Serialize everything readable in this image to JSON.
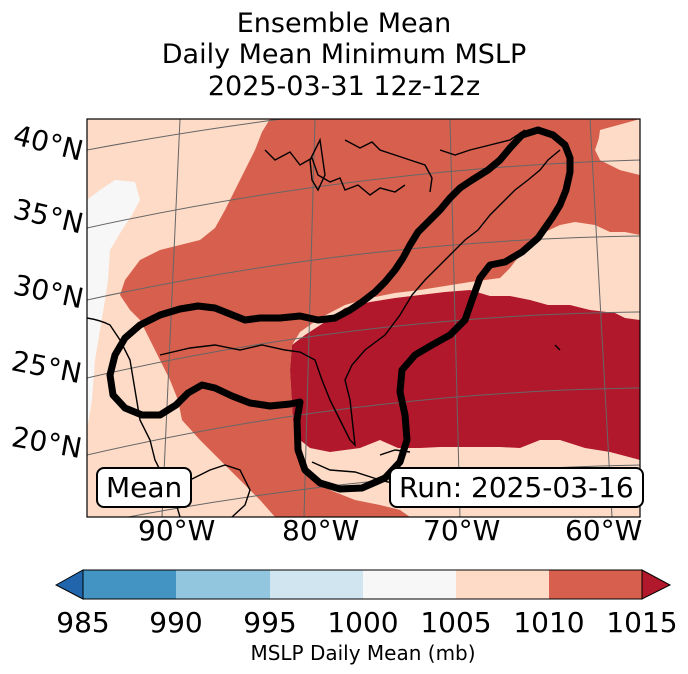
{
  "title_lines": [
    "Ensemble Mean",
    "Daily Mean Minimum MSLP",
    "2025-03-31 12z-12z"
  ],
  "lat_labels": [
    "40°N",
    "35°N",
    "30°N",
    "25°N",
    "20°N"
  ],
  "lon_labels": [
    "90°W",
    "80°W",
    "70°W",
    "60°W"
  ],
  "inset_left": "Mean",
  "inset_right": "Run: 2025-03-16",
  "colorbar": {
    "ticks": [
      "985",
      "990",
      "995",
      "1000",
      "1005",
      "1010",
      "1015"
    ],
    "label": "MSLP Daily Mean (mb)",
    "bins": [
      {
        "range": "<985",
        "color": "#2166ac"
      },
      {
        "range": "985-990",
        "color": "#4393c3"
      },
      {
        "range": "990-995",
        "color": "#92c5de"
      },
      {
        "range": "995-1000",
        "color": "#d1e5f0"
      },
      {
        "range": "1000-1005",
        "color": "#f7f7f7"
      },
      {
        "range": "1005-1010",
        "color": "#fddbc7"
      },
      {
        "range": "1010-1015",
        "color": "#d6604d"
      },
      {
        "range": ">1015",
        "color": "#b2182b"
      }
    ]
  },
  "map_fields": [
    {
      "region": "Ohio Valley / Southeast US / Gulf / western Atlantic",
      "mslp_bin": "1010-1015"
    },
    {
      "region": "Florida, southeast US coast, central Atlantic",
      "mslp_bin": ">1015"
    },
    {
      "region": "Central Plains / western Gulf / western Mexico",
      "mslp_bin": "1005-1010"
    },
    {
      "region": "Southern Plains (Texas)",
      "mslp_bin": "1000-1005"
    },
    {
      "region": "Northern Maine / Atlantic Canada",
      "mslp_bin": "1005-1010"
    }
  ]
}
